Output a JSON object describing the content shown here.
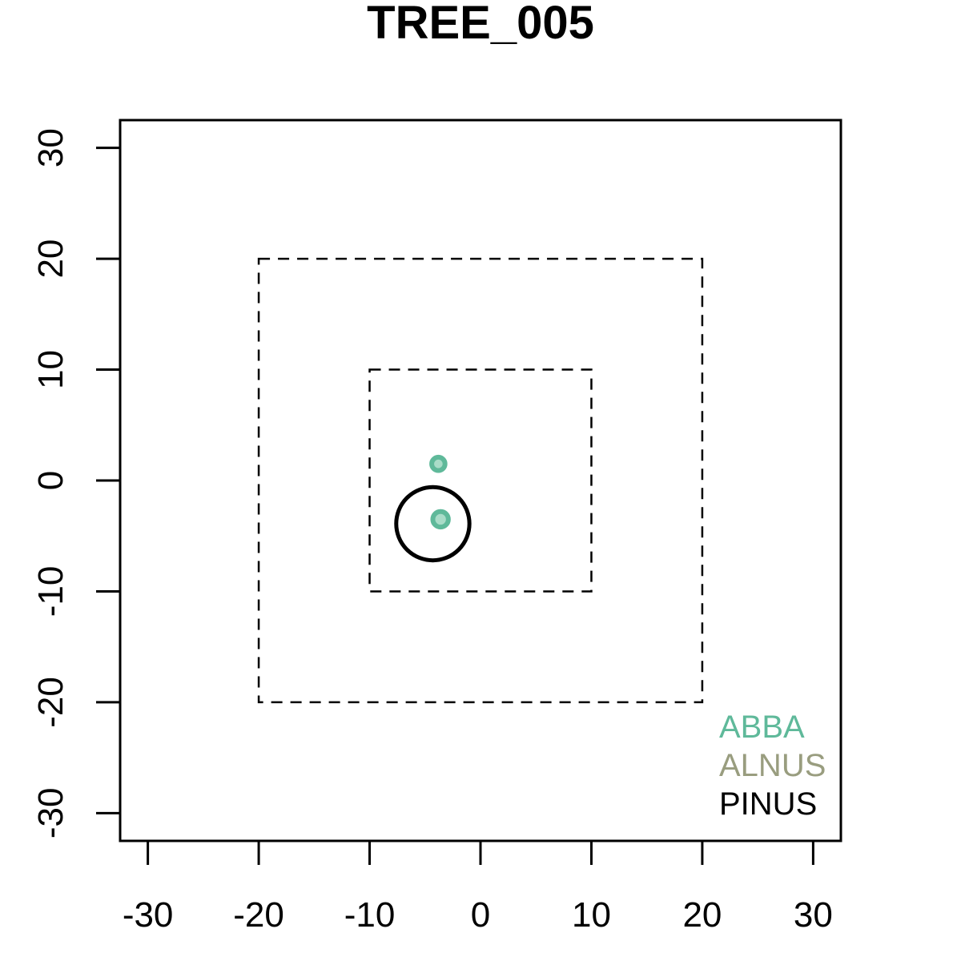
{
  "chart_data": {
    "type": "scatter",
    "title": "TREE_005",
    "xlabel": "",
    "ylabel": "",
    "xlim": [
      -32.5,
      32.5
    ],
    "ylim": [
      -32.5,
      32.5
    ],
    "x_ticks": [
      -30,
      -20,
      -10,
      0,
      10,
      20,
      30
    ],
    "y_ticks": [
      -30,
      -20,
      -10,
      0,
      10,
      20,
      30
    ],
    "x_tick_labels": [
      "-30",
      "-20",
      "-10",
      "0",
      "10",
      "20",
      "30"
    ],
    "y_tick_labels": [
      "-30",
      "-20",
      "-10",
      "0",
      "10",
      "20",
      "30"
    ],
    "grid": false,
    "reference_squares": [
      {
        "x_min": -20,
        "x_max": 20,
        "y_min": -20,
        "y_max": 20,
        "line": "dashed"
      },
      {
        "x_min": -10,
        "x_max": 10,
        "y_min": -10,
        "y_max": 10,
        "line": "dashed"
      }
    ],
    "points": [
      {
        "species": "ABBA",
        "x": -3.8,
        "y": 1.5,
        "radius": 0.6
      },
      {
        "species": "ABBA",
        "x": -3.6,
        "y": -3.5,
        "radius": 0.7
      },
      {
        "species": "PINUS",
        "x": -4.3,
        "y": -3.9,
        "radius": 3.3
      }
    ],
    "legend": {
      "position": "bottom-right",
      "entries": [
        {
          "name": "ABBA",
          "color": "#5fb99a"
        },
        {
          "name": "ALNUS",
          "color": "#999d7f"
        },
        {
          "name": "PINUS",
          "color": "#000000"
        }
      ]
    }
  }
}
